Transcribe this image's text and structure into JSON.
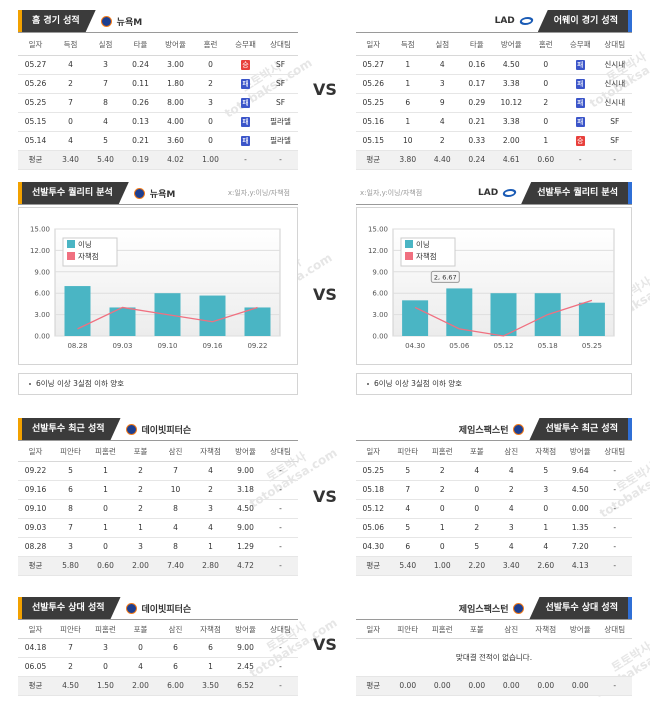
{
  "vs": "VS",
  "watermark": [
    "토토박사",
    "totobaksa.com"
  ],
  "result_colors": {
    "승": "#e8403c",
    "패": "#3b55c9"
  },
  "home_record": {
    "title": "홈 경기 성적",
    "team": "뉴욕M",
    "columns": [
      "일자",
      "득점",
      "실점",
      "타율",
      "방어율",
      "홈런",
      "승무패",
      "상대팀"
    ],
    "rows": [
      [
        "05.27",
        "4",
        "3",
        "0.24",
        "3.00",
        "0",
        "승",
        "SF"
      ],
      [
        "05.26",
        "2",
        "7",
        "0.11",
        "1.80",
        "2",
        "패",
        "SF"
      ],
      [
        "05.25",
        "7",
        "8",
        "0.26",
        "8.00",
        "3",
        "패",
        "SF"
      ],
      [
        "05.15",
        "0",
        "4",
        "0.13",
        "4.00",
        "0",
        "패",
        "필라델"
      ],
      [
        "05.14",
        "4",
        "5",
        "0.21",
        "3.60",
        "0",
        "패",
        "필라델"
      ],
      [
        "평균",
        "3.40",
        "5.40",
        "0.19",
        "4.02",
        "1.00",
        "-",
        "-"
      ]
    ]
  },
  "away_record": {
    "title": "어웨이 경기 성적",
    "team": "LAD",
    "columns": [
      "일자",
      "득점",
      "실점",
      "타율",
      "방어율",
      "홈런",
      "승무패",
      "상대팀"
    ],
    "rows": [
      [
        "05.27",
        "1",
        "4",
        "0.16",
        "4.50",
        "0",
        "패",
        "신시내"
      ],
      [
        "05.26",
        "1",
        "3",
        "0.17",
        "3.38",
        "0",
        "패",
        "신시내"
      ],
      [
        "05.25",
        "6",
        "9",
        "0.29",
        "10.12",
        "2",
        "패",
        "신시내"
      ],
      [
        "05.16",
        "1",
        "4",
        "0.21",
        "3.38",
        "0",
        "패",
        "SF"
      ],
      [
        "05.15",
        "10",
        "2",
        "0.33",
        "2.00",
        "1",
        "승",
        "SF"
      ],
      [
        "평균",
        "3.80",
        "4.40",
        "0.24",
        "4.61",
        "0.60",
        "-",
        "-"
      ]
    ]
  },
  "chart_data": [
    {
      "type": "combo",
      "title": "선발투수 퀄리티 분석",
      "team": "뉴욕M",
      "axis_note": "x:일자,y:이닝/자책점",
      "categories": [
        "08.28",
        "09.03",
        "09.10",
        "09.16",
        "09.22"
      ],
      "series": [
        {
          "name": "이닝",
          "type": "bar",
          "color": "#4ab5c4",
          "values": [
            7,
            4,
            6,
            5.67,
            4
          ]
        },
        {
          "name": "자책점",
          "type": "line",
          "color": "#f07080",
          "values": [
            1,
            4,
            3,
            2,
            4
          ]
        }
      ],
      "ylim": [
        0,
        15
      ],
      "yticks": [
        {
          "value": 0,
          "label": "0.00"
        },
        {
          "value": 3,
          "label": "3.00"
        },
        {
          "value": 6,
          "label": "6.00"
        },
        {
          "value": 9,
          "label": "9.00"
        },
        {
          "value": 12,
          "label": "12.00"
        },
        {
          "value": 15,
          "label": "15.00"
        }
      ],
      "grid": true,
      "note": "6이닝 이상 3실점 이하 양호"
    },
    {
      "type": "combo",
      "title": "선발투수 퀄리티 분석",
      "team": "LAD",
      "axis_note": "x:일자,y:이닝/자책점",
      "categories": [
        "04.30",
        "05.06",
        "05.12",
        "05.18",
        "05.25"
      ],
      "series": [
        {
          "name": "이닝",
          "type": "bar",
          "color": "#4ab5c4",
          "values": [
            5,
            6.67,
            6,
            6,
            4.67
          ]
        },
        {
          "name": "자책점",
          "type": "line",
          "color": "#f07080",
          "values": [
            4,
            1,
            0,
            3,
            5
          ]
        }
      ],
      "ylim": [
        0,
        15
      ],
      "yticks": [
        {
          "value": 0,
          "label": "0.00"
        },
        {
          "value": 3,
          "label": "3.00"
        },
        {
          "value": 6,
          "label": "6.00"
        },
        {
          "value": 9,
          "label": "9.00"
        },
        {
          "value": 12,
          "label": "12.00"
        },
        {
          "value": 15,
          "label": "15.00"
        }
      ],
      "grid": true,
      "annotation": "2, 6.67",
      "note": "6이닝 이상 3실점 이하 양호"
    }
  ],
  "pitcher_recent": {
    "left": {
      "title": "선발투수 최근 성적",
      "team": "데이빗피터슨",
      "columns": [
        "일자",
        "피안타",
        "피홈런",
        "포볼",
        "삼진",
        "자책점",
        "방어율",
        "상대팀"
      ],
      "rows": [
        [
          "09.22",
          "5",
          "1",
          "2",
          "7",
          "4",
          "9.00",
          "-"
        ],
        [
          "09.16",
          "6",
          "1",
          "2",
          "10",
          "2",
          "3.18",
          "-"
        ],
        [
          "09.10",
          "8",
          "0",
          "2",
          "8",
          "3",
          "4.50",
          "-"
        ],
        [
          "09.03",
          "7",
          "1",
          "1",
          "4",
          "4",
          "9.00",
          "-"
        ],
        [
          "08.28",
          "3",
          "0",
          "3",
          "8",
          "1",
          "1.29",
          "-"
        ],
        [
          "평균",
          "5.80",
          "0.60",
          "2.00",
          "7.40",
          "2.80",
          "4.72",
          "-"
        ]
      ]
    },
    "right": {
      "title": "선발투수 최근 성적",
      "team": "제임스팩스턴",
      "columns": [
        "일자",
        "피안타",
        "피홈런",
        "포볼",
        "삼진",
        "자책점",
        "방어율",
        "상대팀"
      ],
      "rows": [
        [
          "05.25",
          "5",
          "2",
          "4",
          "4",
          "5",
          "9.64",
          "-"
        ],
        [
          "05.18",
          "7",
          "2",
          "0",
          "2",
          "3",
          "4.50",
          "-"
        ],
        [
          "05.12",
          "4",
          "0",
          "0",
          "4",
          "0",
          "0.00",
          "-"
        ],
        [
          "05.06",
          "5",
          "1",
          "2",
          "3",
          "1",
          "1.35",
          "-"
        ],
        [
          "04.30",
          "6",
          "0",
          "5",
          "4",
          "4",
          "7.20",
          "-"
        ],
        [
          "평균",
          "5.40",
          "1.00",
          "2.20",
          "3.40",
          "2.60",
          "4.13",
          "-"
        ]
      ]
    }
  },
  "pitcher_vs": {
    "left": {
      "title": "선발투수 상대 성적",
      "team": "데이빗피터슨",
      "columns": [
        "일자",
        "피안타",
        "피홈런",
        "포볼",
        "삼진",
        "자책점",
        "방어율",
        "상대팀"
      ],
      "rows": [
        [
          "04.18",
          "7",
          "3",
          "0",
          "6",
          "6",
          "9.00",
          "-"
        ],
        [
          "06.05",
          "2",
          "0",
          "4",
          "6",
          "1",
          "2.45",
          "-"
        ],
        [
          "평균",
          "4.50",
          "1.50",
          "2.00",
          "6.00",
          "3.50",
          "6.52",
          "-"
        ]
      ]
    },
    "right": {
      "title": "선발투수 상대 성적",
      "team": "제임스팩스턴",
      "columns": [
        "일자",
        "피안타",
        "피홈런",
        "포볼",
        "삼진",
        "자책점",
        "방어율",
        "상대팀"
      ],
      "message": "맞대결 전적이 없습니다.",
      "rows": [
        [
          "평균",
          "0.00",
          "0.00",
          "0.00",
          "0.00",
          "0.00",
          "0.00",
          "-"
        ]
      ]
    }
  }
}
